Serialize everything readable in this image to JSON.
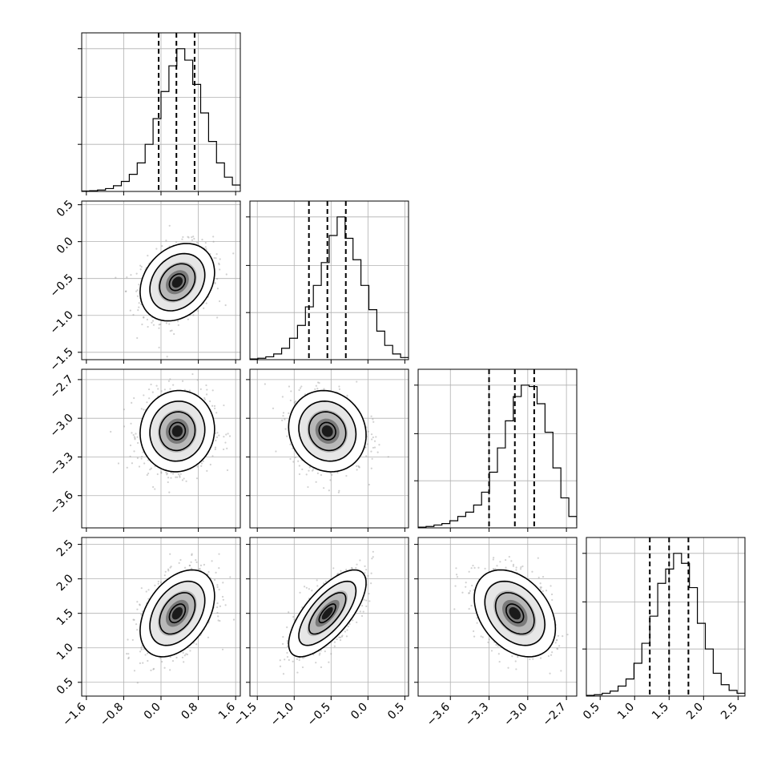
{
  "chart_data": {
    "type": "corner",
    "parameters": [
      {
        "range": [
          -1.7,
          1.7
        ],
        "ticks": [
          -1.6,
          -0.8,
          0.0,
          0.8,
          1.6
        ],
        "tick_labels": [
          "−1.6",
          "−0.8",
          "0.0",
          "0.8",
          "1.6"
        ],
        "mean": 0.35,
        "sd": 0.38,
        "quantiles": [
          -0.05,
          0.33,
          0.72
        ]
      },
      {
        "range": [
          -1.6,
          0.55
        ],
        "ticks": [
          -1.5,
          -1.0,
          -0.5,
          0.0,
          0.5
        ],
        "tick_labels": [
          "−1.5",
          "−1.0",
          "−0.5",
          "0.0",
          "0.5"
        ],
        "mean": -0.55,
        "sd": 0.25,
        "quantiles": [
          -0.8,
          -0.55,
          -0.3
        ]
      },
      {
        "range": [
          -3.85,
          -2.62
        ],
        "ticks": [
          -3.6,
          -3.3,
          -3.0,
          -2.7
        ],
        "tick_labels": [
          "−3.6",
          "−3.3",
          "−3.0",
          "−2.7"
        ],
        "mean": -3.1,
        "sd": 0.15,
        "quantiles": [
          -3.3,
          -3.1,
          -2.95
        ]
      },
      {
        "range": [
          0.3,
          2.6
        ],
        "ticks": [
          0.5,
          1.0,
          1.5,
          2.0,
          2.5
        ],
        "tick_labels": [
          "0.5",
          "1.0",
          "1.5",
          "2.0",
          "2.5"
        ],
        "mean": 1.5,
        "sd": 0.3,
        "quantiles": [
          1.22,
          1.5,
          1.78
        ]
      }
    ],
    "histograms": [
      {
        "edges_start": -1.7,
        "bin_width": 0.17,
        "counts": [
          0.3,
          0.5,
          1,
          2,
          4,
          7,
          12,
          20,
          33,
          51,
          70,
          88,
          100,
          92,
          75,
          55,
          35,
          20,
          10,
          4.5,
          2
        ]
      },
      {
        "edges_start": -1.6,
        "bin_width": 0.1075,
        "counts": [
          0.5,
          1,
          2,
          4,
          8,
          15,
          24,
          37,
          52,
          68,
          87,
          100,
          85,
          70,
          52,
          35,
          20,
          10,
          4,
          1.5
        ]
      },
      {
        "edges_start": -3.85,
        "bin_width": 0.0615,
        "counts": [
          0.5,
          1,
          2,
          3,
          5,
          8,
          11,
          16,
          25,
          39,
          56,
          75,
          92,
          100,
          99,
          87,
          67,
          42,
          21,
          8,
          2
        ]
      },
      {
        "edges_start": 0.3,
        "bin_width": 0.115,
        "counts": [
          0.5,
          1,
          2,
          3.5,
          7,
          12,
          23,
          37,
          56,
          79,
          89,
          100,
          93,
          76,
          51,
          33,
          16,
          8,
          4,
          2
        ]
      }
    ],
    "correlations": [
      [
        1,
        0.25,
        0.05,
        0.4
      ],
      [
        0.25,
        1,
        -0.1,
        0.7
      ],
      [
        0.05,
        -0.1,
        1,
        -0.35
      ],
      [
        0.4,
        0.7,
        -0.35,
        1
      ]
    ],
    "grid": true
  }
}
